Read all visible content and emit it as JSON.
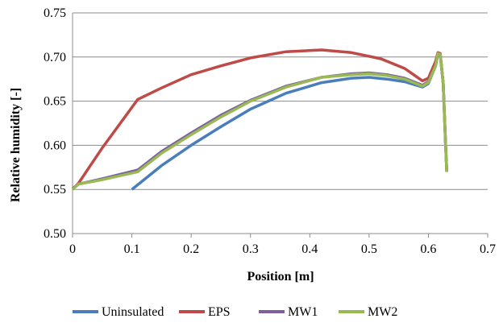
{
  "chart_data": {
    "type": "line",
    "title": "",
    "xlabel": "Position [m]",
    "ylabel": "Relative humidity [-]",
    "xlim": [
      0,
      0.7
    ],
    "ylim": [
      0.5,
      0.75
    ],
    "xticks": [
      "0",
      "0.1",
      "0.2",
      "0.3",
      "0.4",
      "0.5",
      "0.6",
      "0.7"
    ],
    "yticks": [
      "0.50",
      "0.55",
      "0.60",
      "0.65",
      "0.70",
      "0.75"
    ],
    "grid": "horizontal",
    "legend_position": "bottom",
    "series": [
      {
        "name": "Uninsulated",
        "color": "#4a7ebb",
        "points": [
          [
            0.1,
            0.55
          ],
          [
            0.15,
            0.577
          ],
          [
            0.2,
            0.6
          ],
          [
            0.25,
            0.621
          ],
          [
            0.3,
            0.641
          ],
          [
            0.36,
            0.659
          ],
          [
            0.42,
            0.671
          ],
          [
            0.47,
            0.676
          ],
          [
            0.5,
            0.677
          ],
          [
            0.53,
            0.675
          ],
          [
            0.56,
            0.672
          ],
          [
            0.59,
            0.666
          ],
          [
            0.6,
            0.67
          ],
          [
            0.612,
            0.69
          ],
          [
            0.616,
            0.703
          ],
          [
            0.62,
            0.702
          ],
          [
            0.625,
            0.67
          ],
          [
            0.629,
            0.6
          ],
          [
            0.631,
            0.57
          ]
        ]
      },
      {
        "name": "EPS",
        "color": "#be4b48",
        "points": [
          [
            0,
            0.55
          ],
          [
            0.01,
            0.557
          ],
          [
            0.05,
            0.597
          ],
          [
            0.11,
            0.652
          ],
          [
            0.15,
            0.665
          ],
          [
            0.2,
            0.68
          ],
          [
            0.25,
            0.69
          ],
          [
            0.3,
            0.699
          ],
          [
            0.36,
            0.706
          ],
          [
            0.42,
            0.708
          ],
          [
            0.47,
            0.705
          ],
          [
            0.52,
            0.698
          ],
          [
            0.56,
            0.687
          ],
          [
            0.59,
            0.673
          ],
          [
            0.6,
            0.676
          ],
          [
            0.612,
            0.695
          ],
          [
            0.616,
            0.705
          ],
          [
            0.62,
            0.704
          ],
          [
            0.625,
            0.67
          ],
          [
            0.629,
            0.6
          ],
          [
            0.631,
            0.57
          ]
        ]
      },
      {
        "name": "MW1",
        "color": "#7d5fa0",
        "points": [
          [
            0,
            0.551
          ],
          [
            0.01,
            0.556
          ],
          [
            0.05,
            0.562
          ],
          [
            0.11,
            0.572
          ],
          [
            0.15,
            0.593
          ],
          [
            0.2,
            0.614
          ],
          [
            0.25,
            0.634
          ],
          [
            0.3,
            0.651
          ],
          [
            0.36,
            0.667
          ],
          [
            0.42,
            0.677
          ],
          [
            0.47,
            0.681
          ],
          [
            0.5,
            0.682
          ],
          [
            0.53,
            0.68
          ],
          [
            0.56,
            0.676
          ],
          [
            0.59,
            0.668
          ],
          [
            0.6,
            0.672
          ],
          [
            0.612,
            0.69
          ],
          [
            0.616,
            0.704
          ],
          [
            0.62,
            0.703
          ],
          [
            0.625,
            0.67
          ],
          [
            0.629,
            0.6
          ],
          [
            0.631,
            0.57
          ]
        ]
      },
      {
        "name": "MW2",
        "color": "#98b954",
        "points": [
          [
            0,
            0.55
          ],
          [
            0.01,
            0.556
          ],
          [
            0.05,
            0.561
          ],
          [
            0.11,
            0.57
          ],
          [
            0.15,
            0.591
          ],
          [
            0.2,
            0.612
          ],
          [
            0.25,
            0.632
          ],
          [
            0.3,
            0.65
          ],
          [
            0.36,
            0.666
          ],
          [
            0.42,
            0.677
          ],
          [
            0.47,
            0.68
          ],
          [
            0.5,
            0.681
          ],
          [
            0.53,
            0.679
          ],
          [
            0.56,
            0.675
          ],
          [
            0.59,
            0.667
          ],
          [
            0.6,
            0.671
          ],
          [
            0.612,
            0.69
          ],
          [
            0.616,
            0.704
          ],
          [
            0.62,
            0.703
          ],
          [
            0.625,
            0.67
          ],
          [
            0.629,
            0.6
          ],
          [
            0.631,
            0.57
          ]
        ]
      }
    ]
  }
}
